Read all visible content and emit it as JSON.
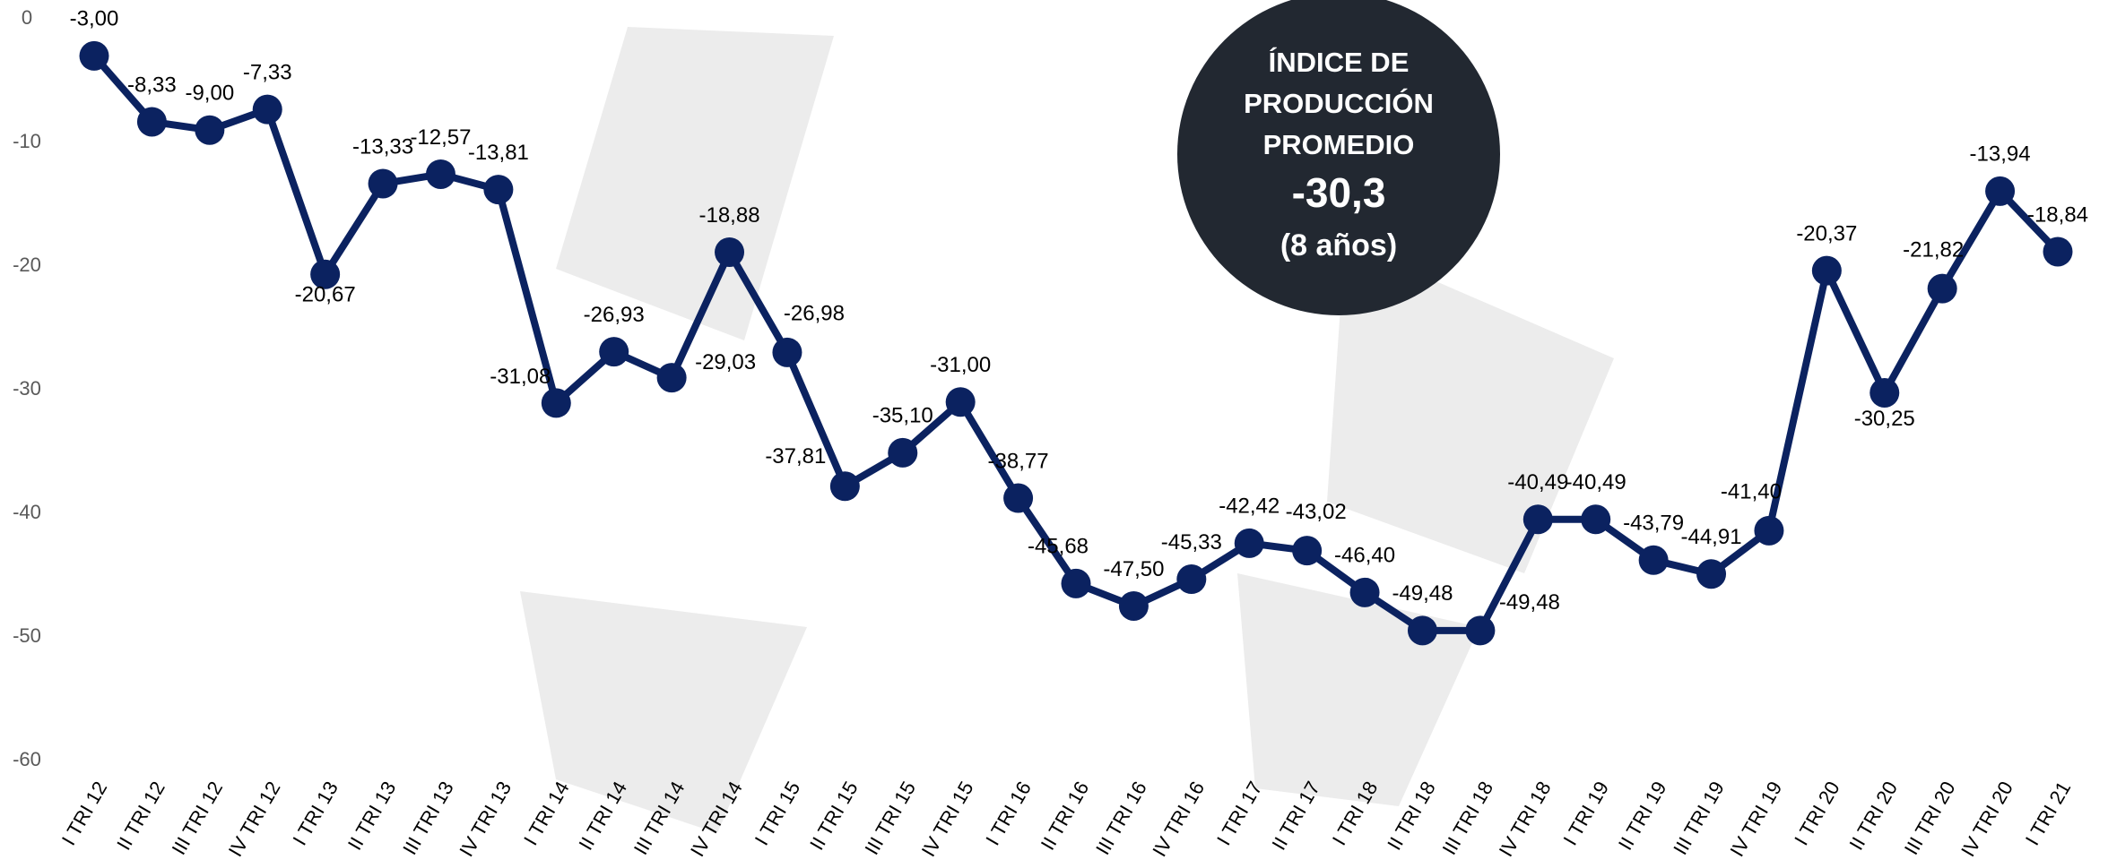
{
  "chart_data": {
    "type": "line",
    "categories": [
      "I TRI 12",
      "II TRI 12",
      "III TRI 12",
      "IV TRI 12",
      "I TRI 13",
      "II TRI 13",
      "III TRI 13",
      "IV TRI 13",
      "I TRI 14",
      "II TRI 14",
      "III TRI 14",
      "IV TRI 14",
      "I TRI 15",
      "II TRI 15",
      "III TRI 15",
      "IV TRI 15",
      "I TRI 16",
      "II TRI 16",
      "III TRI 16",
      "IV TRI 16",
      "I TRI 17",
      "II TRI 17",
      "I TRI 18",
      "II TRI 18",
      "III TRI 18",
      "IV TRI 18",
      "I TRI 19",
      "II TRI 19",
      "III TRI 19",
      "IV TRI 19",
      "I TRI 20",
      "II TRI 20",
      "III TRI 20",
      "IV TRI 20",
      "I TRI 21"
    ],
    "values": [
      -3.0,
      -8.33,
      -9.0,
      -7.33,
      -20.67,
      -13.33,
      -12.57,
      -13.81,
      -31.08,
      -26.93,
      -29.03,
      -18.88,
      -26.98,
      -37.81,
      -35.1,
      -31.0,
      -38.77,
      -45.68,
      -47.5,
      -45.33,
      -42.42,
      -43.02,
      -46.4,
      -49.48,
      -49.48,
      -40.49,
      -40.49,
      -43.79,
      -44.91,
      -41.4,
      -20.37,
      -30.25,
      -21.82,
      -13.94,
      -18.84
    ],
    "value_labels": [
      "-3,00",
      "-8,33",
      "-9,00",
      "-7,33",
      "-20,67",
      "-13,33",
      "-12,57",
      "-13,81",
      "-31,08",
      "-26,93",
      "-29,03",
      "-18,88",
      "-26,98",
      "-37,81",
      "-35,10",
      "-31,00",
      "-38,77",
      "-45,68",
      "-47,50",
      "-45,33",
      "-42,42",
      "-43,02",
      "-46,40",
      "-49,48",
      "-49,48",
      "-40,49",
      "-40,49",
      "-43,79",
      "-44,91",
      "-41,40",
      "-20,37",
      "-30,25",
      "-21,82",
      "-13,94",
      "-18,84"
    ],
    "color": "#0b2260",
    "ylim": [
      -60,
      0
    ],
    "yticks": [
      0,
      -10,
      -20,
      -30,
      -40,
      -50,
      -60
    ],
    "grid": false,
    "annotation": {
      "lines": [
        "ÍNDICE DE",
        "PRODUCCIÓN",
        "PROMEDIO"
      ],
      "value": "-30,3",
      "note": "(8 años)"
    }
  }
}
